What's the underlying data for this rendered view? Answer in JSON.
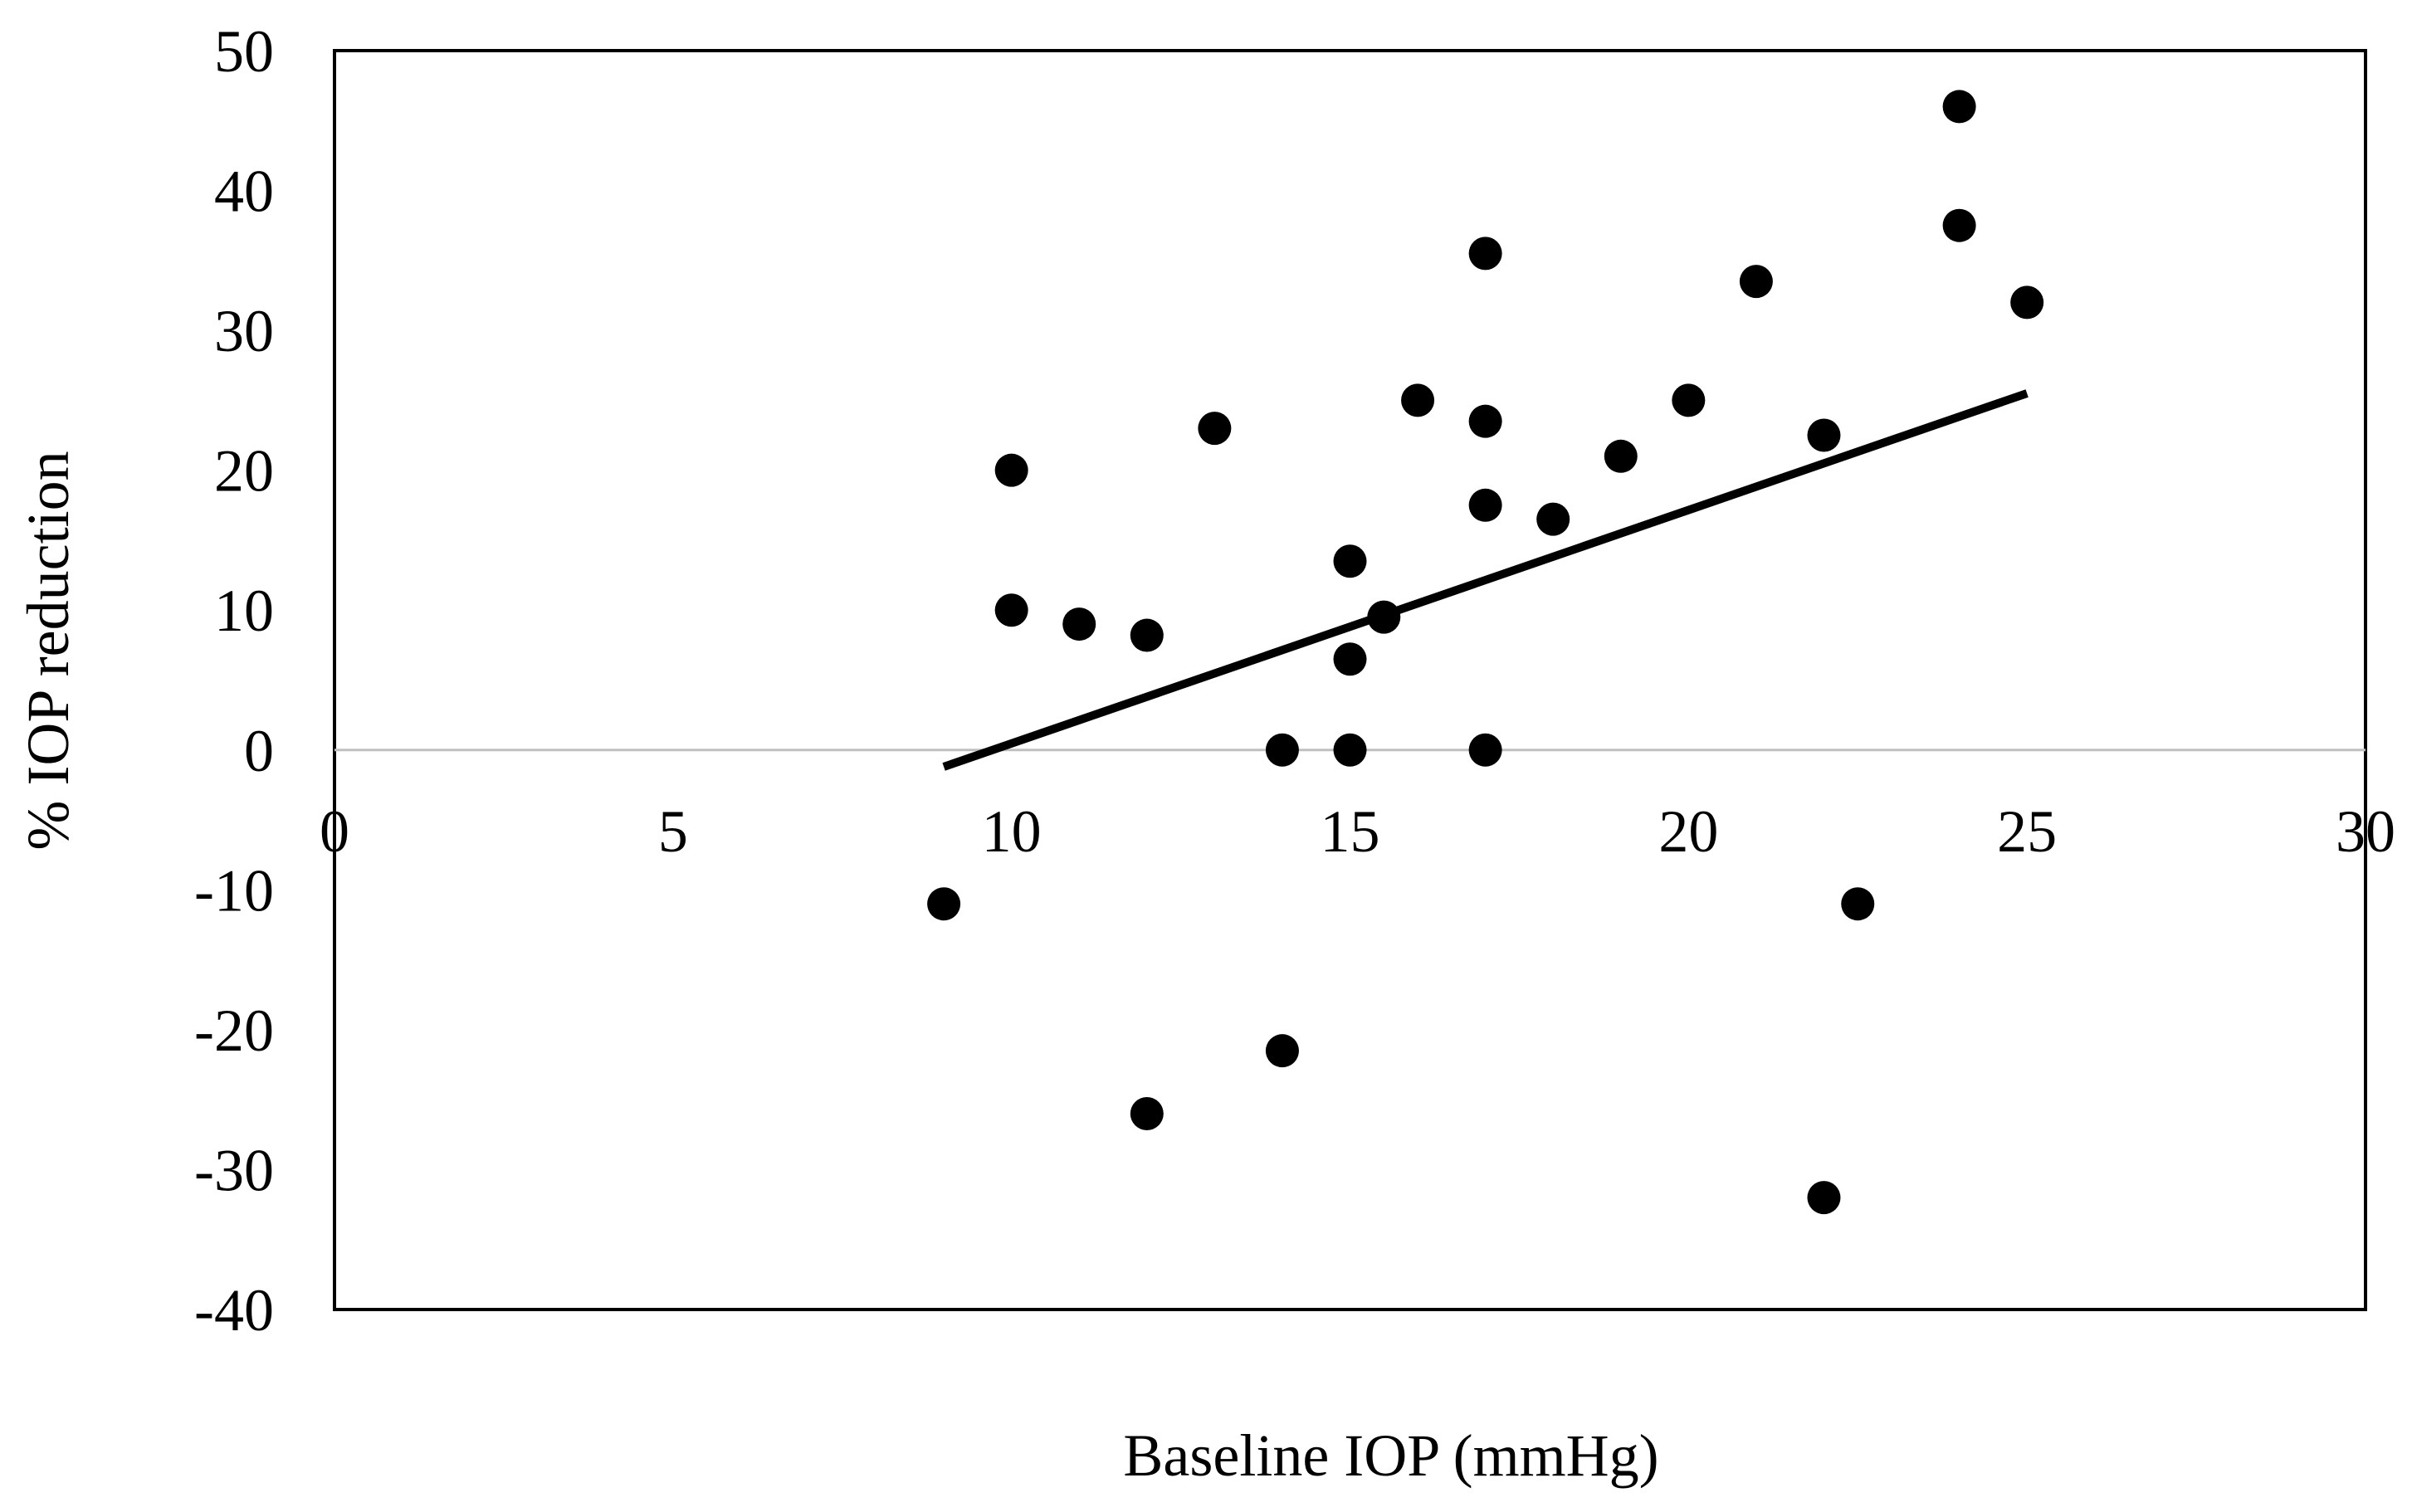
{
  "chart_data": {
    "type": "scatter",
    "title": "",
    "xlabel": "Baseline IOP (mmHg)",
    "ylabel": "% IOP reduction",
    "xlim": [
      0,
      30
    ],
    "ylim": [
      -40,
      50
    ],
    "x_ticks": [
      0,
      5,
      10,
      15,
      20,
      25,
      30
    ],
    "y_ticks": [
      50,
      40,
      30,
      20,
      10,
      0,
      -10,
      -20,
      -30,
      -40
    ],
    "grid": false,
    "legend": "none",
    "colors": {
      "points": "#000000",
      "trendline": "#000000",
      "zero_line": "#bfbfbf",
      "frame": "#000000"
    },
    "series": [
      {
        "points": [
          {
            "x": 9,
            "y": -11
          },
          {
            "x": 10,
            "y": 20
          },
          {
            "x": 10,
            "y": 10
          },
          {
            "x": 11,
            "y": 9
          },
          {
            "x": 12,
            "y": 8.2
          },
          {
            "x": 12,
            "y": -26
          },
          {
            "x": 13,
            "y": 23
          },
          {
            "x": 14,
            "y": 0
          },
          {
            "x": 14,
            "y": -21.5
          },
          {
            "x": 15,
            "y": 13.5
          },
          {
            "x": 15,
            "y": 6.5
          },
          {
            "x": 15,
            "y": 0
          },
          {
            "x": 15.5,
            "y": 9.5
          },
          {
            "x": 16,
            "y": 25
          },
          {
            "x": 17,
            "y": 35.5
          },
          {
            "x": 17,
            "y": 23.5
          },
          {
            "x": 17,
            "y": 17.5
          },
          {
            "x": 17,
            "y": 0
          },
          {
            "x": 18,
            "y": 16.5
          },
          {
            "x": 19,
            "y": 21
          },
          {
            "x": 20,
            "y": 25
          },
          {
            "x": 21,
            "y": 33.5
          },
          {
            "x": 22,
            "y": 22.5
          },
          {
            "x": 22,
            "y": -32
          },
          {
            "x": 22.5,
            "y": -11
          },
          {
            "x": 24,
            "y": 46
          },
          {
            "x": 24,
            "y": 37.5
          },
          {
            "x": 25,
            "y": 32
          }
        ]
      }
    ],
    "trendline": {
      "type": "linear",
      "from": {
        "x": 9,
        "y": -1.2
      },
      "to": {
        "x": 25,
        "y": 25.5
      }
    }
  }
}
